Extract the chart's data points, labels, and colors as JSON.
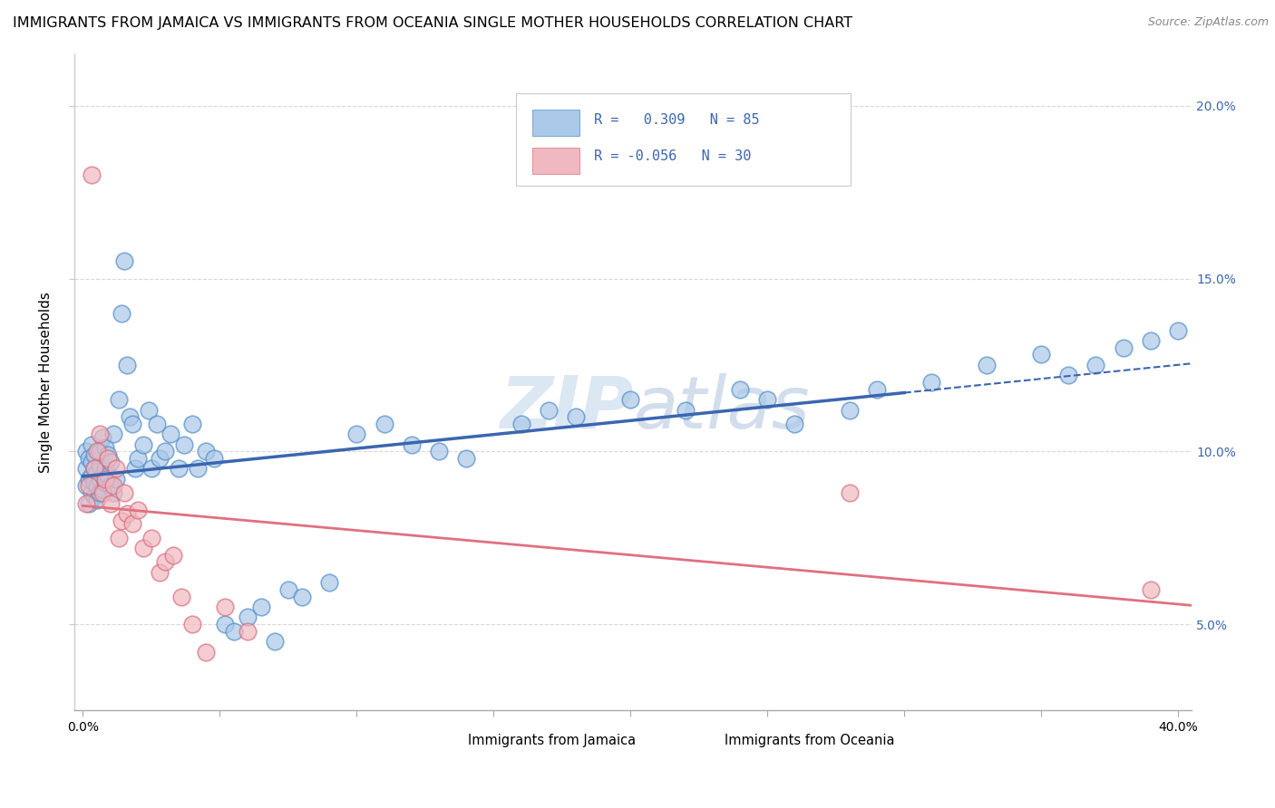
{
  "title": "IMMIGRANTS FROM JAMAICA VS IMMIGRANTS FROM OCEANIA SINGLE MOTHER HOUSEHOLDS CORRELATION CHART",
  "source": "Source: ZipAtlas.com",
  "ylabel": "Single Mother Households",
  "y_ticks": [
    0.05,
    0.1,
    0.15,
    0.2
  ],
  "xlim": [
    -0.003,
    0.405
  ],
  "ylim": [
    0.025,
    0.215
  ],
  "R_jamaica": 0.309,
  "N_jamaica": 85,
  "R_oceania": -0.056,
  "N_oceania": 30,
  "blue_line_color": "#3a66b0",
  "pink_line_color": "#e07080",
  "scatter_blue_face": "#aac8e8",
  "scatter_blue_edge": "#5590c8",
  "scatter_pink_face": "#f0b8c0",
  "scatter_pink_edge": "#d87080",
  "title_fontsize": 11.5,
  "axis_label_fontsize": 11,
  "tick_fontsize": 10,
  "watermark": "ZIPatlas",
  "background_color": "#ffffff",
  "grid_color": "#d8d8d8",
  "legend_label_jamaica": "Immigrants from Jamaica",
  "legend_label_oceania": "Immigrants from Oceania",
  "jamaica_x": [
    0.001,
    0.001,
    0.001,
    0.002,
    0.002,
    0.002,
    0.003,
    0.003,
    0.003,
    0.003,
    0.004,
    0.004,
    0.004,
    0.004,
    0.005,
    0.005,
    0.005,
    0.006,
    0.006,
    0.006,
    0.006,
    0.007,
    0.007,
    0.008,
    0.008,
    0.008,
    0.009,
    0.009,
    0.01,
    0.01,
    0.011,
    0.011,
    0.012,
    0.013,
    0.014,
    0.015,
    0.016,
    0.017,
    0.018,
    0.019,
    0.02,
    0.022,
    0.024,
    0.025,
    0.027,
    0.028,
    0.03,
    0.032,
    0.035,
    0.037,
    0.04,
    0.042,
    0.045,
    0.048,
    0.052,
    0.055,
    0.06,
    0.065,
    0.07,
    0.075,
    0.08,
    0.09,
    0.1,
    0.11,
    0.12,
    0.13,
    0.14,
    0.16,
    0.17,
    0.18,
    0.2,
    0.22,
    0.24,
    0.25,
    0.26,
    0.28,
    0.29,
    0.31,
    0.33,
    0.35,
    0.36,
    0.37,
    0.38,
    0.39,
    0.4
  ],
  "jamaica_y": [
    0.09,
    0.095,
    0.1,
    0.085,
    0.092,
    0.098,
    0.088,
    0.093,
    0.097,
    0.102,
    0.087,
    0.091,
    0.095,
    0.099,
    0.086,
    0.09,
    0.094,
    0.088,
    0.092,
    0.096,
    0.1,
    0.089,
    0.104,
    0.091,
    0.095,
    0.101,
    0.093,
    0.099,
    0.09,
    0.097,
    0.088,
    0.105,
    0.092,
    0.115,
    0.14,
    0.155,
    0.125,
    0.11,
    0.108,
    0.095,
    0.098,
    0.102,
    0.112,
    0.095,
    0.108,
    0.098,
    0.1,
    0.105,
    0.095,
    0.102,
    0.108,
    0.095,
    0.1,
    0.098,
    0.05,
    0.048,
    0.052,
    0.055,
    0.045,
    0.06,
    0.058,
    0.062,
    0.105,
    0.108,
    0.102,
    0.1,
    0.098,
    0.108,
    0.112,
    0.11,
    0.115,
    0.112,
    0.118,
    0.115,
    0.108,
    0.112,
    0.118,
    0.12,
    0.125,
    0.128,
    0.122,
    0.125,
    0.13,
    0.132,
    0.135
  ],
  "oceania_x": [
    0.001,
    0.002,
    0.003,
    0.004,
    0.005,
    0.006,
    0.007,
    0.008,
    0.009,
    0.01,
    0.011,
    0.012,
    0.013,
    0.014,
    0.015,
    0.016,
    0.018,
    0.02,
    0.022,
    0.025,
    0.028,
    0.03,
    0.033,
    0.036,
    0.04,
    0.045,
    0.052,
    0.06,
    0.28,
    0.39
  ],
  "oceania_y": [
    0.085,
    0.09,
    0.18,
    0.095,
    0.1,
    0.105,
    0.088,
    0.092,
    0.098,
    0.085,
    0.09,
    0.095,
    0.075,
    0.08,
    0.088,
    0.082,
    0.079,
    0.083,
    0.072,
    0.075,
    0.065,
    0.068,
    0.07,
    0.058,
    0.05,
    0.042,
    0.055,
    0.048,
    0.088,
    0.06
  ]
}
